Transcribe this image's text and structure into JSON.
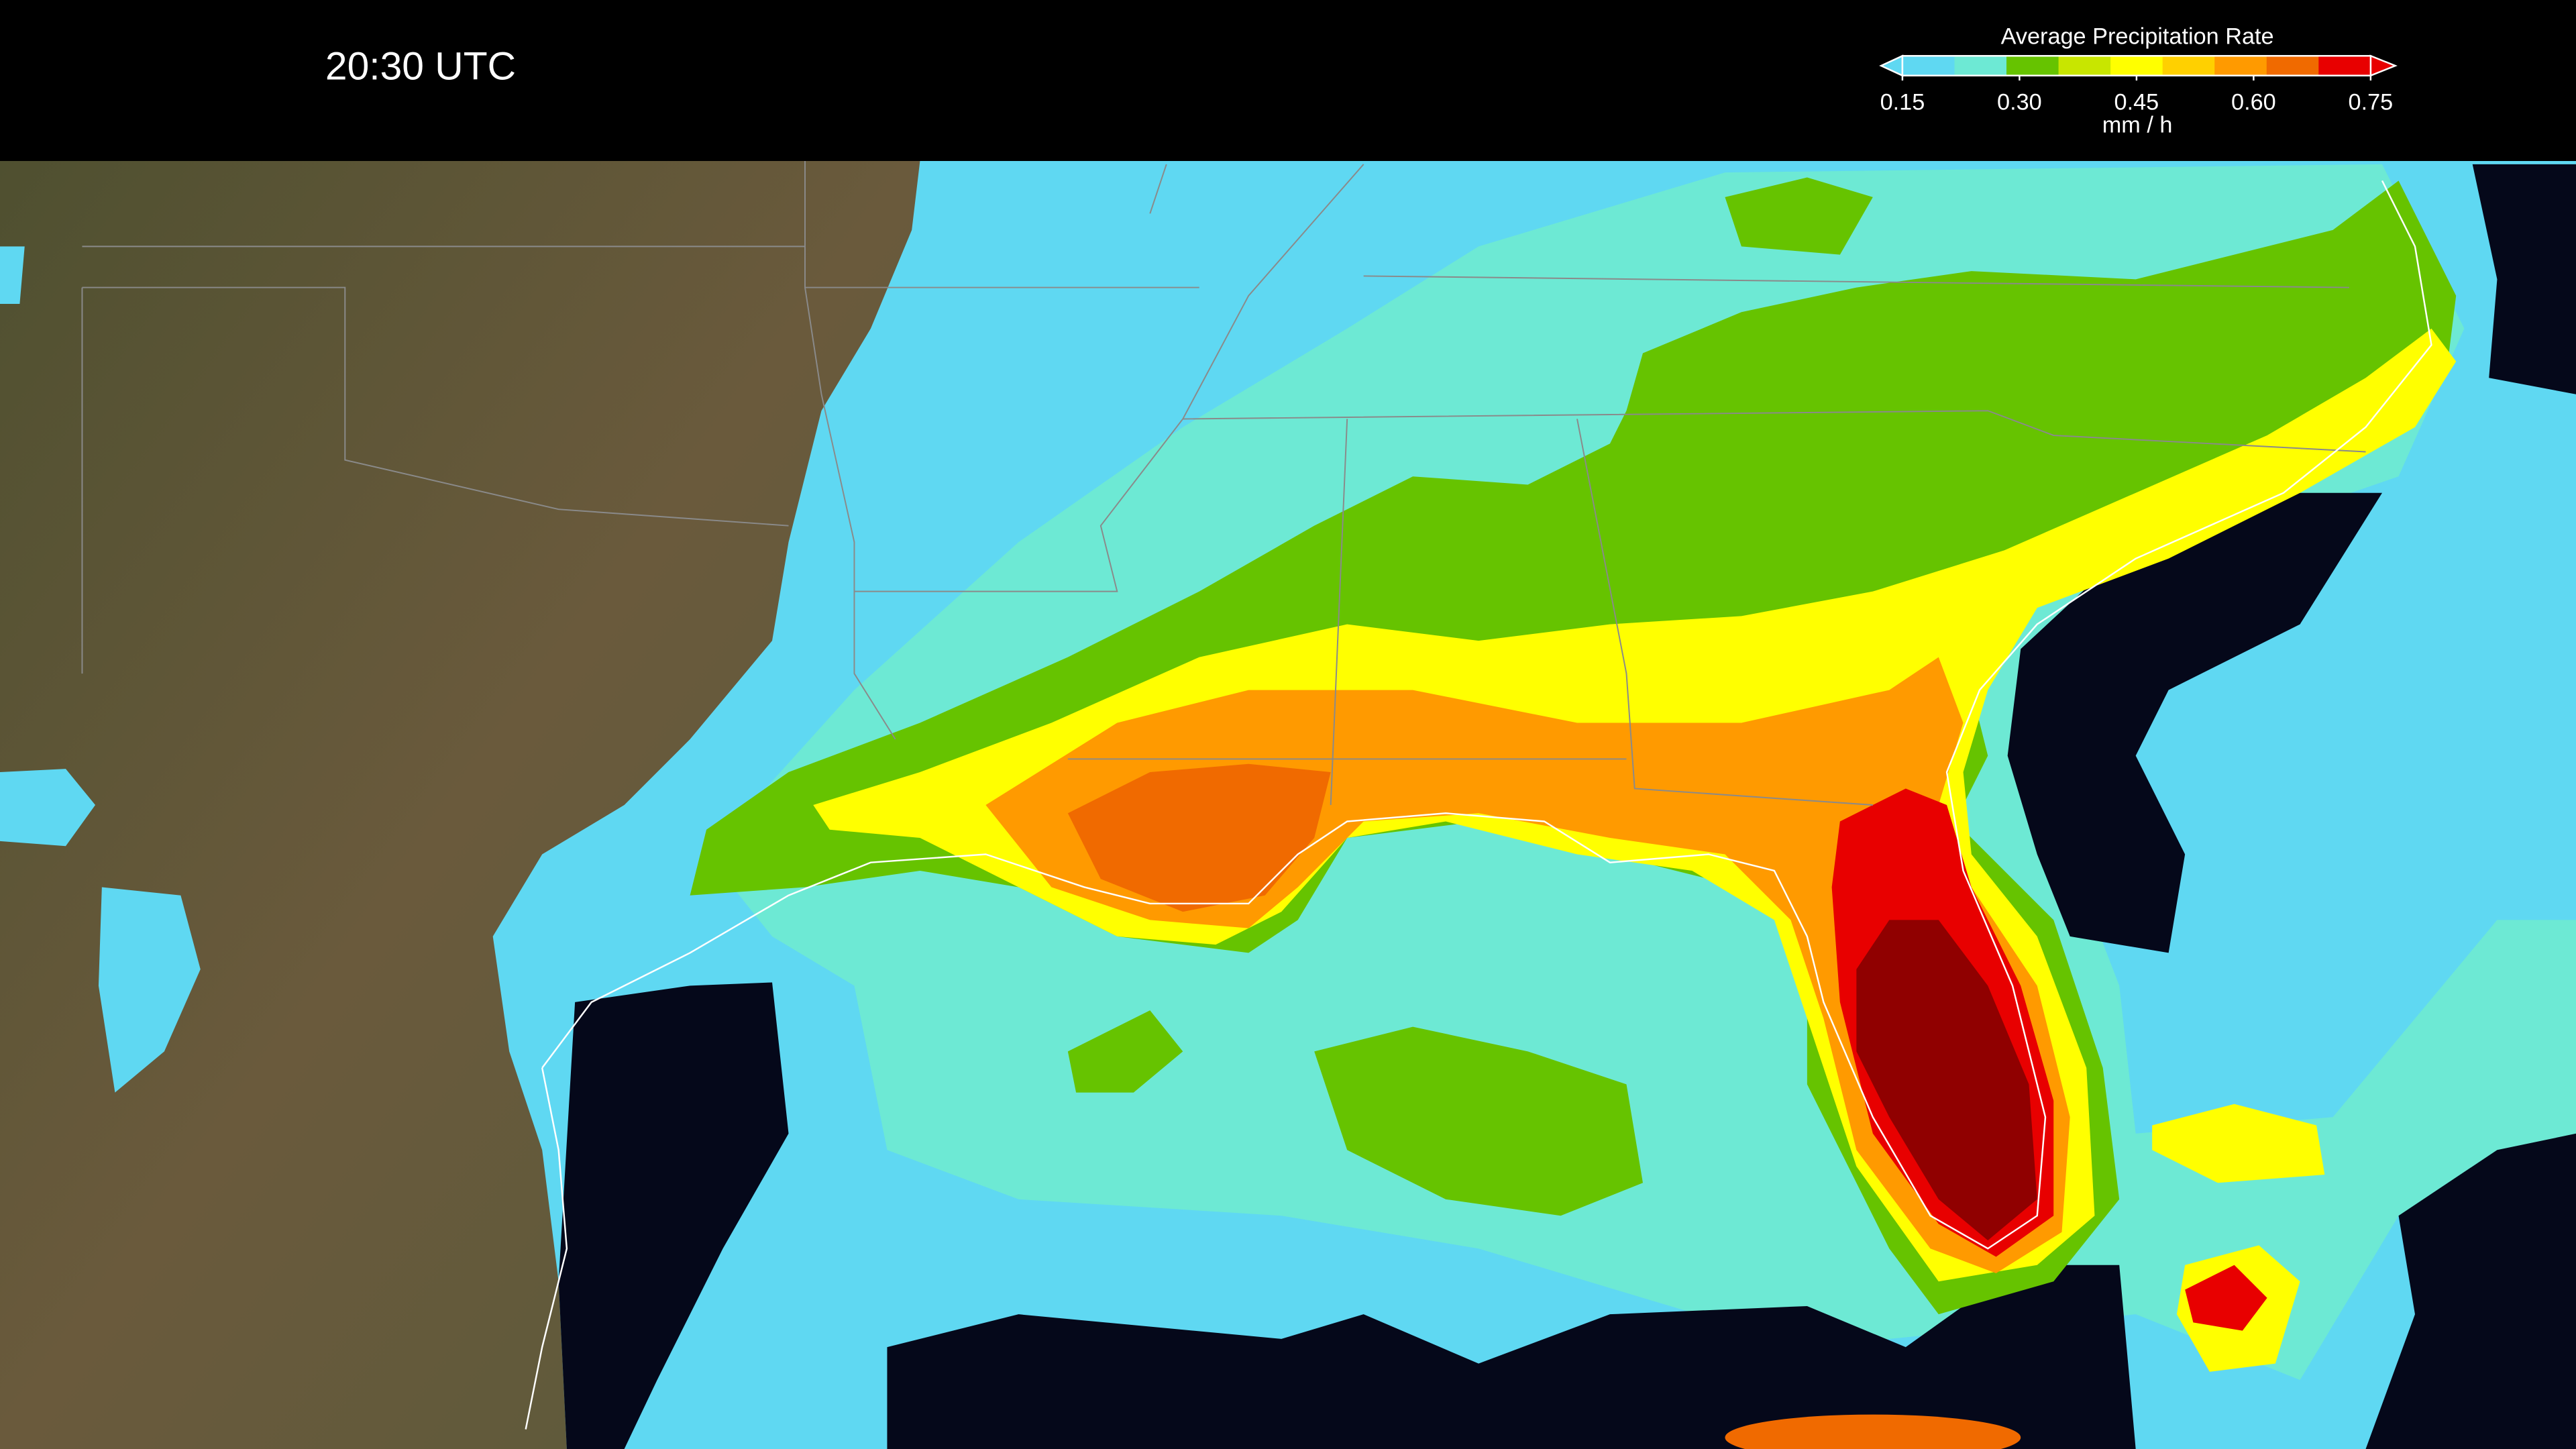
{
  "header": {
    "time": "20:30 UTC"
  },
  "legend": {
    "title": "Average Precipitation Rate",
    "unit": "mm / h",
    "ticks": [
      {
        "value": 0.15,
        "label": "0.15"
      },
      {
        "value": 0.3,
        "label": "0.30"
      },
      {
        "value": 0.45,
        "label": "0.45"
      },
      {
        "value": 0.6,
        "label": "0.60"
      },
      {
        "value": 0.75,
        "label": "0.75"
      }
    ],
    "colors": [
      "#5fd8f2",
      "#6de9d4",
      "#66c300",
      "#c8e600",
      "#ffff00",
      "#ffd000",
      "#ff9a00",
      "#f06a00",
      "#e80000"
    ]
  }
}
